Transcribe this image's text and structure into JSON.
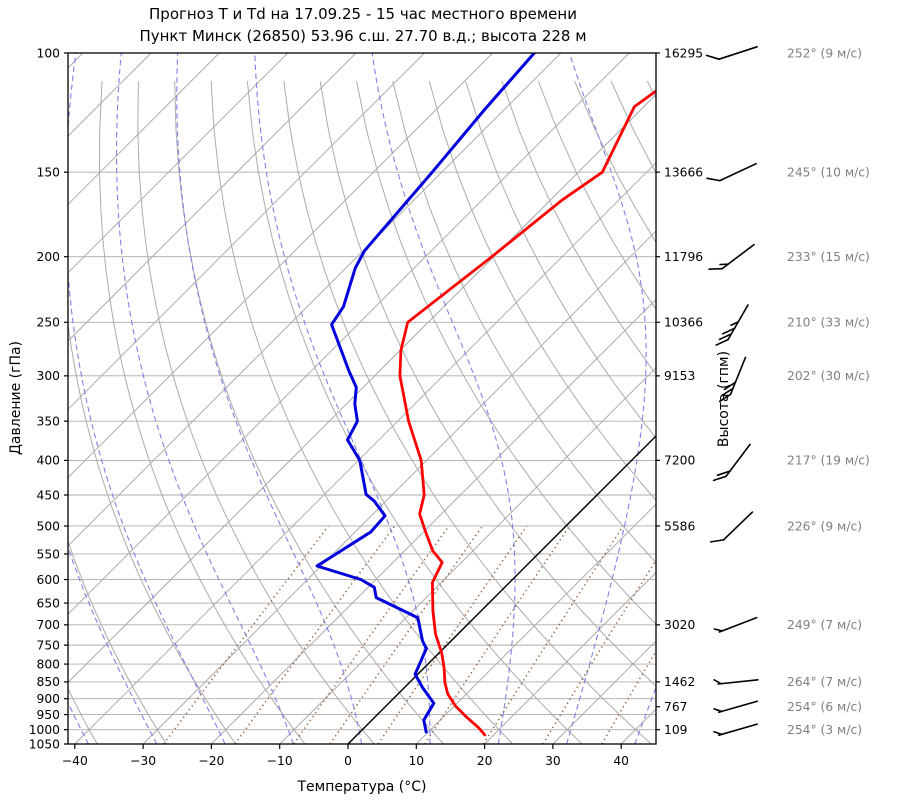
{
  "title": {
    "line1": "Прогноз Т и Td на 17.09.25 - 15 час местного времени",
    "line2": "Пункт Минск (26850) 53.96 с.ш. 27.70 в.д.; высота 228 м"
  },
  "axes": {
    "pressure_label": "Давление (гПа)",
    "temperature_label": "Температура (°C)",
    "height_label": "Высота (гпм)"
  },
  "colors": {
    "temperature": "#ff0000",
    "dewpoint": "#0000dd",
    "grid": "#ababab",
    "zero_isotherm": "#000000",
    "moist_adiabat": "#8080e8",
    "mixing_ratio": "#9b6038",
    "wind_label": "#808080",
    "tick_label": "#000000"
  },
  "chart_data": {
    "type": "line",
    "subtype": "skew-t-log-p sounding",
    "title": "Прогноз Т и Td на 17.09.25 - 15 час местного времени — Пункт Минск (26850)",
    "xlabel": "Температура (°C)",
    "ylabel_left": "Давление (гПа)",
    "ylabel_right": "Высота (гпм)",
    "pressure_range_hpa": [
      100,
      1050
    ],
    "temperature_range_at_surface": [
      -41,
      45
    ],
    "pressure_ticks": [
      100,
      150,
      200,
      250,
      300,
      350,
      400,
      450,
      500,
      550,
      600,
      650,
      700,
      750,
      800,
      850,
      900,
      950,
      1000,
      1050
    ],
    "temperature_tick_values": [
      -40,
      -30,
      -20,
      -10,
      0,
      10,
      20,
      30,
      40
    ],
    "temperature_tick_labels": [
      "−40",
      "−30",
      "−20",
      "−10",
      "0",
      "10",
      "20",
      "30",
      "40"
    ],
    "grid": true,
    "series": [
      {
        "name": "temperature",
        "units": "°C",
        "points_p_t": [
          [
            1018,
            18.7
          ],
          [
            993,
            16.7
          ],
          [
            960,
            13.6
          ],
          [
            923,
            10.2
          ],
          [
            886,
            7.3
          ],
          [
            852,
            5.2
          ],
          [
            810,
            2.9
          ],
          [
            769,
            0.3
          ],
          [
            722,
            -3.3
          ],
          [
            667,
            -7.1
          ],
          [
            606,
            -11.3
          ],
          [
            566,
            -12.8
          ],
          [
            544,
            -15.9
          ],
          [
            511,
            -19.6
          ],
          [
            480,
            -23.2
          ],
          [
            450,
            -25.3
          ],
          [
            400,
            -30.8
          ],
          [
            350,
            -38.4
          ],
          [
            300,
            -46.3
          ],
          [
            275,
            -49.9
          ],
          [
            250,
            -53.0
          ],
          [
            200,
            -50.3
          ],
          [
            165,
            -48.3
          ],
          [
            150,
            -46.5
          ],
          [
            120,
            -51.4
          ],
          [
            113,
            -50.4
          ]
        ]
      },
      {
        "name": "dewpoint",
        "units": "°C",
        "points_p_t": [
          [
            1008,
            9.7
          ],
          [
            968,
            7.6
          ],
          [
            914,
            6.6
          ],
          [
            866,
            2.6
          ],
          [
            828,
            -0.4
          ],
          [
            759,
            -2.5
          ],
          [
            739,
            -4.2
          ],
          [
            684,
            -8.2
          ],
          [
            679,
            -9.1
          ],
          [
            638,
            -17.3
          ],
          [
            616,
            -19.1
          ],
          [
            600,
            -22.2
          ],
          [
            573,
            -30.6
          ],
          [
            510,
            -27.7
          ],
          [
            483,
            -28.0
          ],
          [
            459,
            -31.8
          ],
          [
            449,
            -33.9
          ],
          [
            400,
            -39.8
          ],
          [
            373,
            -44.6
          ],
          [
            350,
            -45.9
          ],
          [
            330,
            -48.8
          ],
          [
            312,
            -51.0
          ],
          [
            295,
            -54.5
          ],
          [
            252,
            -63.8
          ],
          [
            237,
            -64.7
          ],
          [
            208,
            -68.6
          ],
          [
            196,
            -69.8
          ],
          [
            150,
            -71.4
          ],
          [
            121,
            -72.9
          ],
          [
            100,
            -73.9
          ]
        ]
      }
    ],
    "background": {
      "isotherms_c": {
        "from": -140,
        "to": 40,
        "step": 10
      },
      "zero_isotherm_highlighted": true,
      "dry_adiabats_theta_c": {
        "from": -40,
        "to": 150,
        "step": 10
      },
      "moist_adiabat_surface_temps_c": [
        -38,
        -28,
        -18,
        -8,
        2,
        12,
        22,
        32,
        42
      ],
      "mixing_ratio_lines_g_kg": [
        0.4,
        1,
        2,
        3,
        5,
        8,
        14,
        24,
        40,
        70
      ],
      "mixing_ratio_top_hpa": 500
    },
    "levels": [
      {
        "pressure": 100,
        "height_gpm": "16295",
        "wind_dir_deg": 252,
        "wind_speed_ms": 9,
        "wind_label": "252° (9 м/с)"
      },
      {
        "pressure": 150,
        "height_gpm": "13666",
        "wind_dir_deg": 245,
        "wind_speed_ms": 10,
        "wind_label": "245° (10 м/с)"
      },
      {
        "pressure": 200,
        "height_gpm": "11796",
        "wind_dir_deg": 233,
        "wind_speed_ms": 15,
        "wind_label": "233° (15 м/с)"
      },
      {
        "pressure": 250,
        "height_gpm": "10366",
        "wind_dir_deg": 210,
        "wind_speed_ms": 33,
        "wind_label": "210° (33 м/с)"
      },
      {
        "pressure": 300,
        "height_gpm": "9153",
        "wind_dir_deg": 202,
        "wind_speed_ms": 30,
        "wind_label": "202° (30 м/с)"
      },
      {
        "pressure": 400,
        "height_gpm": "7200",
        "wind_dir_deg": 217,
        "wind_speed_ms": 19,
        "wind_label": "217° (19 м/с)"
      },
      {
        "pressure": 500,
        "height_gpm": "5586",
        "wind_dir_deg": 226,
        "wind_speed_ms": 9,
        "wind_label": "226° (9 м/с)"
      },
      {
        "pressure": 700,
        "height_gpm": "3020",
        "wind_dir_deg": 249,
        "wind_speed_ms": 7,
        "wind_label": "249° (7 м/с)"
      },
      {
        "pressure": 850,
        "height_gpm": "1462",
        "wind_dir_deg": 264,
        "wind_speed_ms": 7,
        "wind_label": "264° (7 м/с)"
      },
      {
        "pressure": 925,
        "height_gpm": "767",
        "wind_dir_deg": 254,
        "wind_speed_ms": 6,
        "wind_label": "254° (6 м/с)"
      },
      {
        "pressure": 1000,
        "height_gpm": "109",
        "wind_dir_deg": 254,
        "wind_speed_ms": 3,
        "wind_label": "254° (3 м/с)"
      }
    ]
  }
}
